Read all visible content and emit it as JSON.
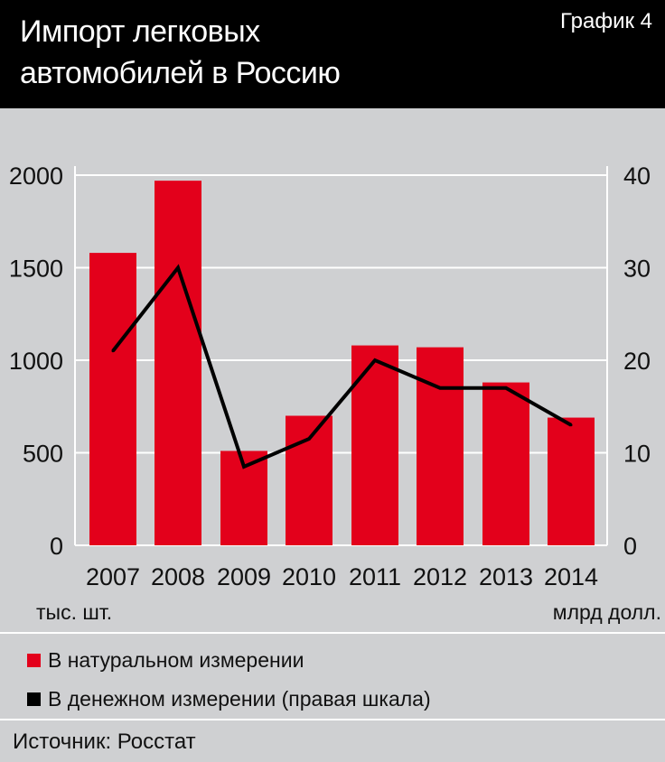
{
  "header": {
    "title_line1": "Импорт легковых",
    "title_line2": "автомобилей в Россию",
    "chart_number": "График 4"
  },
  "colors": {
    "bar": "#e3001b",
    "line": "#000000",
    "background": "#cfd0d2",
    "header_bg": "#000000",
    "grid": "#ffffff"
  },
  "chart_data": {
    "type": "bar",
    "categories": [
      "2007",
      "2008",
      "2009",
      "2010",
      "2011",
      "2012",
      "2013",
      "2014"
    ],
    "series": [
      {
        "name": "В натуральном измерении",
        "type": "bar",
        "axis": "left",
        "values": [
          1580,
          1970,
          510,
          700,
          1080,
          1070,
          880,
          690
        ]
      },
      {
        "name": "В денежном измерении (правая шкала)",
        "type": "line",
        "axis": "right",
        "values": [
          21,
          30,
          8.5,
          11.5,
          20,
          17,
          17,
          13
        ]
      }
    ],
    "y_left": {
      "label": "тыс. шт.",
      "ylim": [
        0,
        2000
      ],
      "ticks": [
        "0",
        "500",
        "1000",
        "1500",
        "2000"
      ]
    },
    "y_right": {
      "label": "млрд долл.",
      "ylim": [
        0,
        40
      ],
      "ticks": [
        "0",
        "10",
        "20",
        "30",
        "40"
      ]
    },
    "grid": true
  },
  "legend": {
    "bar_label": "В натуральном измерении",
    "line_label": "В денежном измерении (правая шкала)"
  },
  "source": "Источник: Росстат"
}
